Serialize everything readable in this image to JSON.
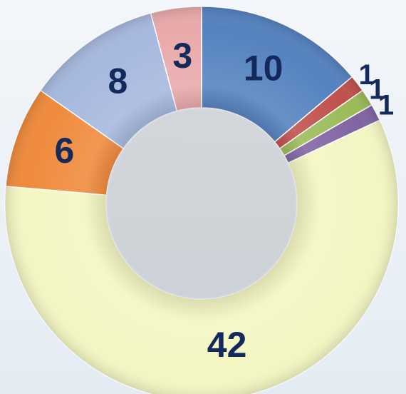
{
  "chart_data": {
    "type": "donut",
    "values": [
      10,
      1,
      1,
      1,
      42,
      6,
      8,
      3
    ],
    "colors": [
      "#5482bf",
      "#c0504d",
      "#9bbb59",
      "#8064a2",
      "#f4f6c2",
      "#f08a3c",
      "#a6b8de",
      "#e9a9aa"
    ]
  }
}
